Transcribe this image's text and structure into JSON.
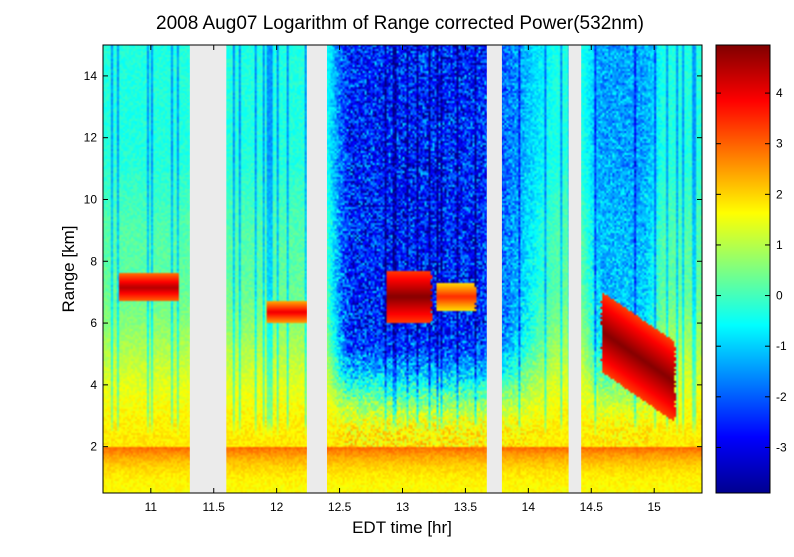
{
  "chart_data": {
    "type": "heatmap",
    "title": "2008 Aug07  Logarithm of Range corrected Power(532nm)",
    "xlabel": "EDT time [hr]",
    "ylabel": "Range [km]",
    "xlim": [
      10.62,
      15.38
    ],
    "ylim": [
      0.5,
      15
    ],
    "x_ticks": [
      11,
      11.5,
      12,
      12.5,
      13,
      13.5,
      14,
      14.5,
      15
    ],
    "x_tick_labels": [
      "11",
      "11.5",
      "12",
      "12.5",
      "13",
      "13.5",
      "14",
      "14.5",
      "15"
    ],
    "y_ticks": [
      2,
      4,
      6,
      8,
      10,
      12,
      14
    ],
    "y_tick_labels": [
      "2",
      "4",
      "6",
      "8",
      "10",
      "12",
      "14"
    ],
    "colorbar": {
      "range": [
        -3.9,
        4.95
      ],
      "ticks": [
        -3,
        -2,
        -1,
        0,
        1,
        2,
        3,
        4
      ],
      "tick_labels": [
        "-3",
        "-2",
        "-1",
        "0",
        "1",
        "2",
        "3",
        "4"
      ],
      "colormap": "jet"
    },
    "data_gaps_hr": [
      [
        11.31,
        11.6
      ],
      [
        12.24,
        12.4
      ],
      [
        13.67,
        13.79
      ],
      [
        14.32,
        14.42
      ]
    ],
    "cloud_layers": [
      {
        "start_hr": 10.72,
        "end_hr": 11.25,
        "range_km": [
          6.7,
          7.6
        ],
        "value": 4.5
      },
      {
        "start_hr": 11.9,
        "end_hr": 12.3,
        "range_km": [
          6.0,
          6.7
        ],
        "value": 4.0
      },
      {
        "start_hr": 12.85,
        "end_hr": 13.25,
        "range_km": [
          6.0,
          7.7
        ],
        "value": 4.9
      },
      {
        "start_hr": 13.25,
        "end_hr": 13.6,
        "range_km": [
          6.4,
          7.3
        ],
        "value": 3.5
      },
      {
        "start_hr": 14.55,
        "end_hr": 15.2,
        "range_km": [
          3.6,
          6.2
        ],
        "value": 4.9
      }
    ],
    "boundary_layer": {
      "top_km": 2.0,
      "surface_value": 1.6,
      "top_value": 3.0
    },
    "background_values": {
      "near_surface": 1.8,
      "mid_troposphere": 0.2,
      "upper_clear": -0.3,
      "upper_noisy": -2.5
    },
    "colors": {
      "gap": "#ebebeb",
      "axis": "#000000",
      "background": "#ffffff"
    }
  }
}
